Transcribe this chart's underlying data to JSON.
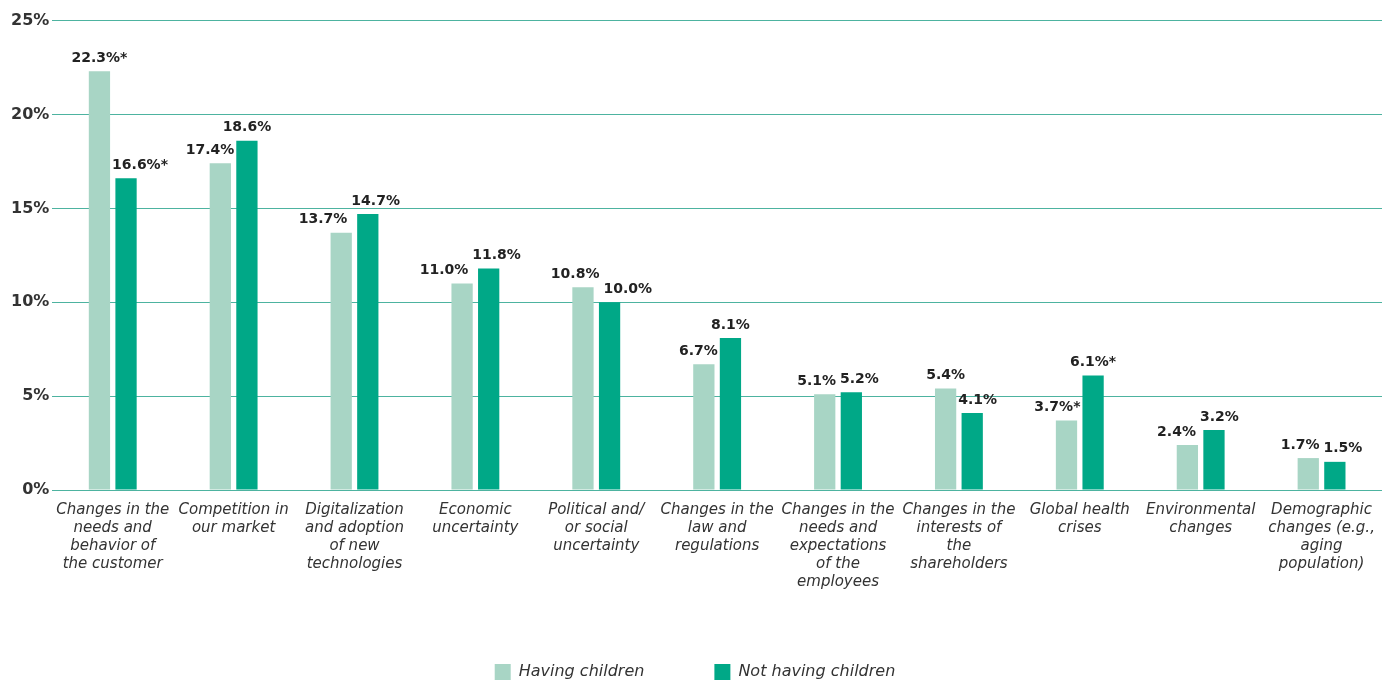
{
  "chart_data": {
    "type": "bar",
    "categories": [
      "Changes in the needs and behavior of the customer",
      "Competition in our market",
      "Digitalization and adoption of new technologies",
      "Economic uncertainty",
      "Political and/ or social uncertainty",
      "Changes in the law and regulations",
      "Changes in the needs and expectations of the employees",
      "Changes in the interests of the shareholders",
      "Global health crises",
      "Environmental changes",
      "Demographic changes (e.g., aging population)"
    ],
    "series": [
      {
        "name": "Having children",
        "color": "#a8d5c5",
        "values": [
          22.3,
          17.4,
          13.7,
          11.0,
          10.8,
          6.7,
          5.1,
          5.4,
          3.7,
          2.4,
          1.7
        ],
        "value_labels": [
          "22.3%*",
          "17.4%",
          "13.7%",
          "11.0%",
          "10.8%",
          "6.7%",
          "5.1%",
          "5.4%",
          "3.7%*",
          "2.4%",
          "1.7%"
        ]
      },
      {
        "name": "Not having children",
        "color": "#00a887",
        "values": [
          16.6,
          18.6,
          14.7,
          11.8,
          10.0,
          8.1,
          5.2,
          4.1,
          6.1,
          3.2,
          1.5
        ],
        "value_labels": [
          "16.6%*",
          "18.6%",
          "14.7%",
          "11.8%",
          "10.0%",
          "8.1%",
          "5.2%",
          "4.1%",
          "6.1%*",
          "3.2%",
          "1.5%"
        ]
      }
    ],
    "ylim": [
      0,
      25
    ],
    "yticks": [
      {
        "value": 0,
        "label": "0%"
      },
      {
        "value": 5,
        "label": "5%"
      },
      {
        "value": 10,
        "label": "10%"
      },
      {
        "value": 15,
        "label": "15%"
      },
      {
        "value": 20,
        "label": "20%"
      },
      {
        "value": 25,
        "label": "25%"
      }
    ],
    "grid": "y",
    "legend": "bottom"
  }
}
